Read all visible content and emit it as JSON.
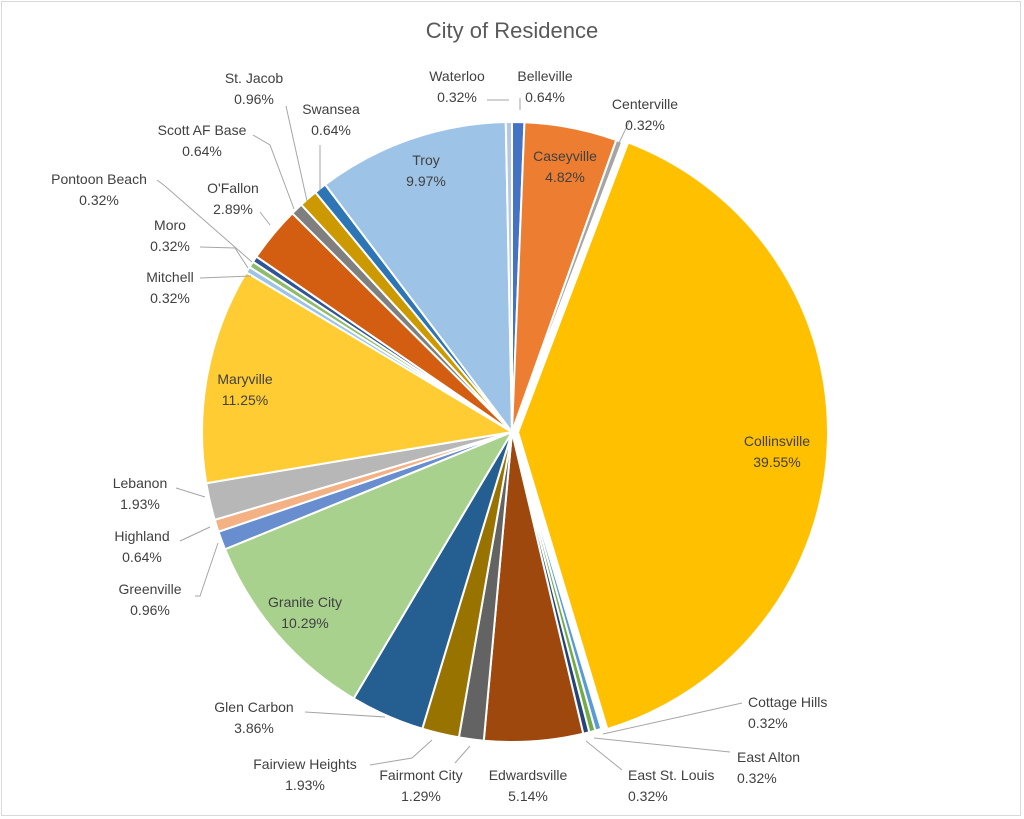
{
  "chart_data": {
    "type": "pie",
    "title": "City of Residence",
    "slices": [
      {
        "name": "Belleville",
        "value": 0.64,
        "label": "0.64%",
        "color": "#4472C4"
      },
      {
        "name": "Caseyville",
        "value": 4.82,
        "label": "4.82%",
        "color": "#ED7D31"
      },
      {
        "name": "Centerville",
        "value": 0.32,
        "label": "0.32%",
        "color": "#A5A5A5"
      },
      {
        "name": "Collinsville",
        "value": 39.55,
        "label": "39.55%",
        "color": "#FFC000"
      },
      {
        "name": "Cottage Hills",
        "value": 0.32,
        "label": "0.32%",
        "color": "#5B9BD5"
      },
      {
        "name": "East Alton",
        "value": 0.32,
        "label": "0.32%",
        "color": "#70AD47"
      },
      {
        "name": "East St. Louis",
        "value": 0.32,
        "label": "0.32%",
        "color": "#264478"
      },
      {
        "name": "Edwardsville",
        "value": 5.14,
        "label": "5.14%",
        "color": "#9E480E"
      },
      {
        "name": "Fairmont City",
        "value": 1.29,
        "label": "1.29%",
        "color": "#636363"
      },
      {
        "name": "Fairview Heights",
        "value": 1.93,
        "label": "1.93%",
        "color": "#997300"
      },
      {
        "name": "Glen Carbon",
        "value": 3.86,
        "label": "3.86%",
        "color": "#255E91"
      },
      {
        "name": "Granite City",
        "value": 10.29,
        "label": "10.29%",
        "color": "#A9D18E"
      },
      {
        "name": "Greenville",
        "value": 0.96,
        "label": "0.96%",
        "color": "#698ED0"
      },
      {
        "name": "Highland",
        "value": 0.64,
        "label": "0.64%",
        "color": "#F4B183"
      },
      {
        "name": "Lebanon",
        "value": 1.93,
        "label": "1.93%",
        "color": "#B7B7B7"
      },
      {
        "name": "Maryville",
        "value": 11.25,
        "label": "11.25%",
        "color": "#FFCD33"
      },
      {
        "name": "Mitchell",
        "value": 0.32,
        "label": "0.32%",
        "color": "#9DC3E6"
      },
      {
        "name": "Moro",
        "value": 0.32,
        "label": "0.32%",
        "color": "#8FBC6A"
      },
      {
        "name": "Pontoon Beach",
        "value": 0.32,
        "label": "0.32%",
        "color": "#2F5597"
      },
      {
        "name": "O'Fallon",
        "value": 2.89,
        "label": "2.89%",
        "color": "#D35E12"
      },
      {
        "name": "Scott AF Base",
        "value": 0.64,
        "label": "0.64%",
        "color": "#7F7F7F"
      },
      {
        "name": "St. Jacob",
        "value": 0.96,
        "label": "0.96%",
        "color": "#CC9900"
      },
      {
        "name": "Swansea",
        "value": 0.64,
        "label": "0.64%",
        "color": "#2E75B6"
      },
      {
        "name": "Troy",
        "value": 9.97,
        "label": "9.97%",
        "color": "#9DC3E6"
      },
      {
        "name": "Waterloo",
        "value": 0.32,
        "label": "0.32%",
        "color": "#B4C7E7"
      }
    ]
  }
}
